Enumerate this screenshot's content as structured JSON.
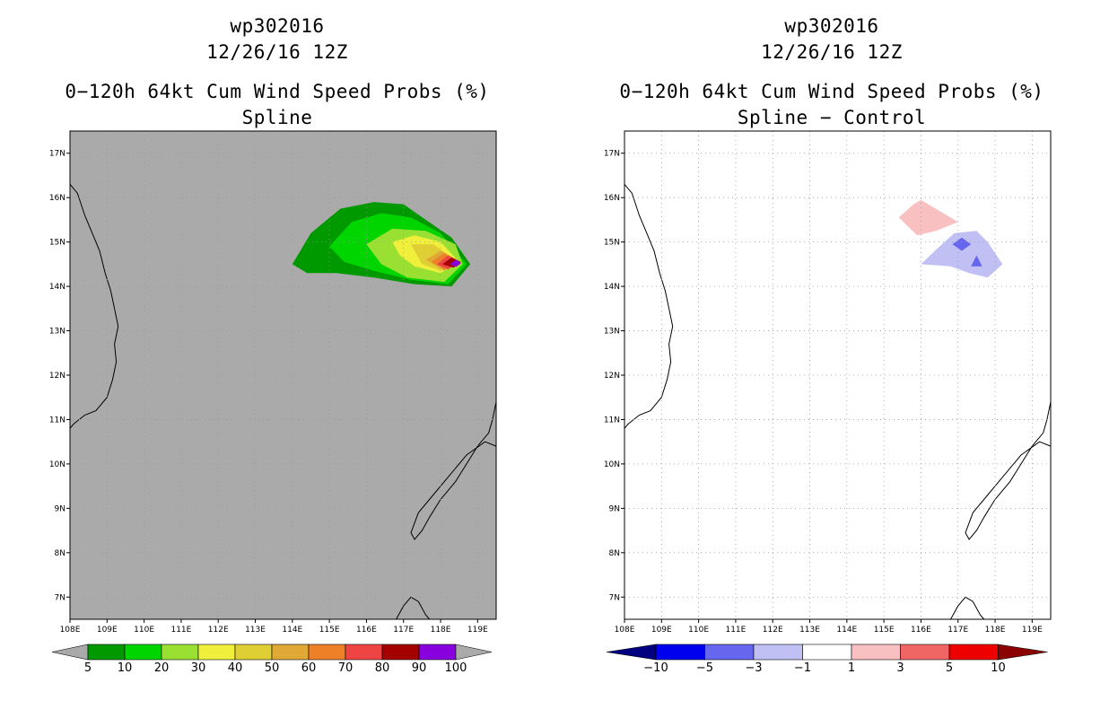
{
  "chart_data": [
    {
      "type": "heatmap",
      "storm": "wp302016",
      "datetime": "12/26/16 12Z",
      "title": "0−120h 64kt Cum Wind Speed Probs (%)",
      "subtitle": "Spline",
      "xlim": [
        108,
        119.5
      ],
      "ylim": [
        6.5,
        17.5
      ],
      "x_ticks": [
        "108E",
        "109E",
        "110E",
        "111E",
        "112E",
        "113E",
        "114E",
        "115E",
        "116E",
        "117E",
        "118E",
        "119E"
      ],
      "y_ticks": [
        "7N",
        "8N",
        "9N",
        "10N",
        "11N",
        "12N",
        "13N",
        "14N",
        "15N",
        "16N",
        "17N"
      ],
      "grid": true,
      "background_color": "#aaaaaa",
      "colorbar": {
        "labels": [
          "5",
          "10",
          "20",
          "30",
          "40",
          "50",
          "60",
          "70",
          "80",
          "90",
          "100"
        ],
        "colors": [
          "#009900",
          "#00d500",
          "#99e033",
          "#f0f03c",
          "#dfcf34",
          "#e0a935",
          "#ee8028",
          "#ef4444",
          "#a40000",
          "#8800dd"
        ]
      },
      "contours": [
        {
          "level": 5,
          "color": "#009900",
          "points": [
            [
              114.0,
              14.5
            ],
            [
              114.5,
              15.2
            ],
            [
              115.3,
              15.75
            ],
            [
              116.2,
              15.9
            ],
            [
              117.0,
              15.85
            ],
            [
              117.6,
              15.5
            ],
            [
              118.3,
              15.1
            ],
            [
              118.8,
              14.5
            ],
            [
              118.3,
              14.0
            ],
            [
              117.3,
              14.05
            ],
            [
              116.2,
              14.2
            ],
            [
              115.2,
              14.3
            ],
            [
              114.4,
              14.3
            ]
          ]
        },
        {
          "level": 10,
          "color": "#00d500",
          "points": [
            [
              115.0,
              14.9
            ],
            [
              115.6,
              15.45
            ],
            [
              116.4,
              15.65
            ],
            [
              117.2,
              15.55
            ],
            [
              118.0,
              15.2
            ],
            [
              118.7,
              14.5
            ],
            [
              118.2,
              14.05
            ],
            [
              117.2,
              14.15
            ],
            [
              116.2,
              14.35
            ],
            [
              115.4,
              14.55
            ]
          ]
        },
        {
          "level": 20,
          "color": "#99e033",
          "points": [
            [
              116.0,
              14.95
            ],
            [
              116.7,
              15.3
            ],
            [
              117.6,
              15.25
            ],
            [
              118.4,
              14.95
            ],
            [
              118.6,
              14.5
            ],
            [
              118.1,
              14.1
            ],
            [
              117.1,
              14.2
            ],
            [
              116.4,
              14.5
            ]
          ]
        },
        {
          "level": 30,
          "color": "#f0f03c",
          "points": [
            [
              116.7,
              15.0
            ],
            [
              117.3,
              15.15
            ],
            [
              118.0,
              15.0
            ],
            [
              118.5,
              14.55
            ],
            [
              118.0,
              14.3
            ],
            [
              117.3,
              14.45
            ],
            [
              116.9,
              14.7
            ]
          ]
        },
        {
          "level": 40,
          "color": "#dfcf34",
          "points": [
            [
              117.2,
              14.95
            ],
            [
              117.8,
              14.95
            ],
            [
              118.4,
              14.6
            ],
            [
              118.0,
              14.35
            ],
            [
              117.5,
              14.5
            ]
          ]
        },
        {
          "level": 50,
          "color": "#e0a935",
          "points": [
            [
              117.6,
              14.6
            ],
            [
              118.0,
              14.8
            ],
            [
              118.45,
              14.6
            ],
            [
              118.1,
              14.35
            ]
          ]
        },
        {
          "level": 60,
          "color": "#ee8028",
          "points": [
            [
              117.75,
              14.55
            ],
            [
              118.1,
              14.75
            ],
            [
              118.45,
              14.55
            ],
            [
              118.1,
              14.38
            ]
          ]
        },
        {
          "level": 70,
          "color": "#ef4444",
          "points": [
            [
              117.9,
              14.5
            ],
            [
              118.2,
              14.7
            ],
            [
              118.5,
              14.55
            ],
            [
              118.2,
              14.38
            ]
          ]
        },
        {
          "level": 80,
          "color": "#a40000",
          "points": [
            [
              118.05,
              14.5
            ],
            [
              118.3,
              14.65
            ],
            [
              118.55,
              14.55
            ],
            [
              118.35,
              14.42
            ]
          ]
        },
        {
          "level": 90,
          "color": "#8800dd",
          "points": [
            [
              118.25,
              14.5
            ],
            [
              118.42,
              14.6
            ],
            [
              118.55,
              14.52
            ],
            [
              118.42,
              14.44
            ]
          ]
        }
      ]
    },
    {
      "type": "heatmap",
      "storm": "wp302016",
      "datetime": "12/26/16 12Z",
      "title": "0−120h 64kt Cum Wind Speed Probs (%)",
      "subtitle": "Spline − Control",
      "xlim": [
        108,
        119.5
      ],
      "ylim": [
        6.5,
        17.5
      ],
      "x_ticks": [
        "108E",
        "109E",
        "110E",
        "111E",
        "112E",
        "113E",
        "114E",
        "115E",
        "116E",
        "117E",
        "118E",
        "119E"
      ],
      "y_ticks": [
        "7N",
        "8N",
        "9N",
        "10N",
        "11N",
        "12N",
        "13N",
        "14N",
        "15N",
        "16N",
        "17N"
      ],
      "grid": true,
      "background_color": "#ffffff",
      "colorbar": {
        "labels": [
          "−10",
          "−5",
          "−3",
          "−1",
          "1",
          "3",
          "5",
          "10"
        ],
        "colors": [
          "#000080",
          "#0000ee",
          "#6666ee",
          "#c0c0f4",
          "#ffffff",
          "#f8c0c0",
          "#f06666",
          "#ee0000",
          "#8b0000"
        ]
      },
      "contours": [
        {
          "level": 1,
          "color": "#f8c0c0",
          "points": [
            [
              115.4,
              15.55
            ],
            [
              115.8,
              15.85
            ],
            [
              116.0,
              15.95
            ],
            [
              116.5,
              15.7
            ],
            [
              117.0,
              15.45
            ],
            [
              116.4,
              15.25
            ],
            [
              115.9,
              15.15
            ]
          ]
        },
        {
          "level": -1,
          "color": "#c0c0f4",
          "points": [
            [
              116.0,
              14.5
            ],
            [
              116.5,
              14.9
            ],
            [
              116.9,
              15.2
            ],
            [
              117.5,
              15.25
            ],
            [
              117.8,
              15.0
            ],
            [
              118.2,
              14.5
            ],
            [
              117.8,
              14.2
            ],
            [
              117.3,
              14.3
            ],
            [
              116.8,
              14.45
            ]
          ]
        },
        {
          "level": -3,
          "color": "#6666ee",
          "points": [
            [
              116.85,
              14.95
            ],
            [
              117.1,
              15.1
            ],
            [
              117.35,
              14.95
            ],
            [
              117.1,
              14.8
            ]
          ]
        },
        {
          "level": -3,
          "color": "#6666ee",
          "points": [
            [
              117.35,
              14.45
            ],
            [
              117.5,
              14.7
            ],
            [
              117.65,
              14.45
            ]
          ]
        }
      ]
    }
  ]
}
